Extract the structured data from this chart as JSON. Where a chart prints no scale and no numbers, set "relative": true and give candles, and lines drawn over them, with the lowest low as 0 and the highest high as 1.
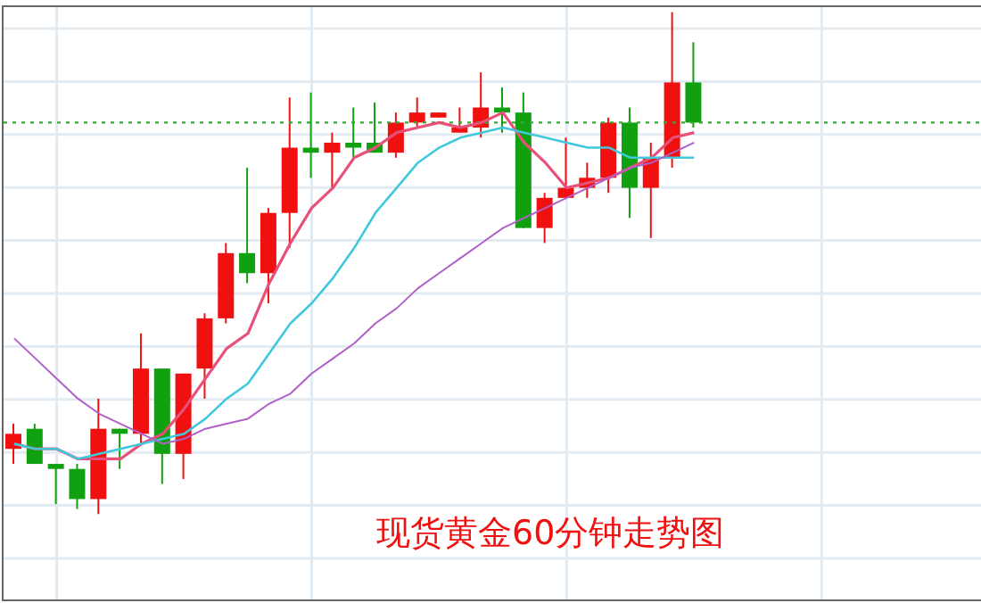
{
  "chart_data": {
    "type": "candlestick",
    "title": "现货黄金60分钟走势图",
    "relative": true,
    "grid": true,
    "categories": [
      null,
      null,
      null,
      null,
      null,
      null,
      null,
      null,
      null,
      null,
      null,
      null,
      null,
      null,
      null,
      null,
      null,
      null,
      null,
      null,
      null,
      null,
      null,
      null,
      null,
      null,
      null,
      null,
      null,
      null,
      null,
      null,
      null,
      null,
      null,
      null,
      null,
      null,
      null,
      null,
      null,
      null,
      null,
      null,
      null,
      null
    ],
    "ohlc": [
      [
        0.13,
        0.18,
        0.1,
        0.16
      ],
      [
        0.17,
        0.18,
        0.1,
        0.1
      ],
      [
        0.1,
        0.1,
        0.02,
        0.09
      ],
      [
        0.09,
        0.1,
        0.01,
        0.03
      ],
      [
        0.03,
        0.23,
        0,
        0.17
      ],
      [
        0.17,
        0.17,
        0.09,
        0.16
      ],
      [
        0.16,
        0.36,
        0.14,
        0.29
      ],
      [
        0.29,
        0.29,
        0.06,
        0.12
      ],
      [
        0.12,
        0.28,
        0.07,
        0.28
      ],
      [
        0.29,
        0.4,
        0.23,
        0.39
      ],
      [
        0.39,
        0.54,
        0.38,
        0.52
      ],
      [
        0.52,
        0.69,
        0.46,
        0.48
      ],
      [
        0.48,
        0.61,
        0.42,
        0.6
      ],
      [
        0.6,
        0.83,
        0.53,
        0.73
      ],
      [
        0.73,
        0.84,
        0.67,
        0.72
      ],
      [
        0.72,
        0.76,
        0.65,
        0.74
      ],
      [
        0.74,
        0.81,
        0.71,
        0.73
      ],
      [
        0.74,
        0.82,
        0.72,
        0.72
      ],
      [
        0.72,
        0.8,
        0.71,
        0.78
      ],
      [
        0.78,
        0.83,
        0.77,
        0.8
      ],
      [
        0.79,
        0.8,
        0.79,
        0.8
      ],
      [
        0.76,
        0.81,
        0.76,
        0.77
      ],
      [
        0.77,
        0.88,
        0.75,
        0.81
      ],
      [
        0.81,
        0.85,
        0.76,
        0.8
      ],
      [
        0.8,
        0.84,
        0.57,
        0.57
      ],
      [
        0.57,
        0.64,
        0.54,
        0.63
      ],
      [
        0.63,
        0.75,
        0.63,
        0.65
      ],
      [
        0.65,
        0.7,
        0.63,
        0.67
      ],
      [
        0.67,
        0.79,
        0.64,
        0.78
      ],
      [
        0.78,
        0.81,
        0.59,
        0.65
      ],
      [
        0.65,
        0.74,
        0.55,
        0.71
      ],
      [
        0.71,
        1.0,
        0.69,
        0.86
      ],
      [
        0.86,
        0.94,
        0.77,
        0.78
      ],
      null,
      null,
      null,
      null,
      null,
      null,
      null,
      null,
      null,
      null,
      null,
      null,
      null
    ],
    "colors": [
      "#f01010",
      "#10a010",
      "#10a010",
      "#10a010",
      "#f01010",
      "#10a010",
      "#f01010",
      "#10a010",
      "#f01010",
      "#f01010",
      "#f01010",
      "#10a010",
      "#f01010",
      "#f01010",
      "#10a010",
      "#f01010",
      "#10a010",
      "#10a010",
      "#f01010",
      "#f01010",
      "#f01010",
      "#f01010",
      "#f01010",
      "#10a010",
      "#10a010",
      "#f01010",
      "#f01010",
      "#f01010",
      "#f01010",
      "#10a010",
      "#f01010",
      "#f01010",
      "#10a010",
      null,
      null,
      null,
      null,
      null,
      null,
      null,
      null,
      null,
      null,
      null,
      null,
      null
    ],
    "series": [
      {
        "type": "line",
        "color": "#e8507a",
        "values": [
          0.14,
          0.13,
          0.13,
          0.11,
          0.11,
          0.11,
          0.14,
          0.16,
          0.21,
          0.27,
          0.33,
          0.36,
          0.46,
          0.54,
          0.61,
          0.65,
          0.71,
          0.73,
          0.76,
          0.77,
          0.78,
          0.77,
          0.78,
          0.8,
          0.74,
          0.7,
          0.65,
          0.66,
          0.67,
          0.69,
          0.71,
          0.75,
          0.76,
          null,
          null,
          null,
          null,
          null,
          null,
          null,
          null,
          null,
          null,
          null,
          null,
          null
        ]
      },
      {
        "type": "line",
        "color": "#40c8dc",
        "values": [
          0.14,
          0.13,
          0.13,
          0.11,
          0.12,
          0.13,
          0.14,
          0.15,
          0.16,
          0.19,
          0.23,
          0.26,
          0.32,
          0.38,
          0.42,
          0.47,
          0.53,
          0.6,
          0.65,
          0.7,
          0.73,
          0.75,
          0.76,
          0.77,
          0.76,
          0.75,
          0.74,
          0.73,
          0.73,
          0.71,
          0.71,
          0.71,
          0.71,
          null,
          null,
          null,
          null,
          null,
          null,
          null,
          null,
          null,
          null,
          null,
          null,
          null
        ]
      },
      {
        "type": "line",
        "color": "#b060c8",
        "values": [
          0.35,
          0.31,
          0.27,
          0.23,
          0.2,
          0.18,
          0.16,
          0.14,
          0.15,
          0.17,
          0.18,
          0.19,
          0.22,
          0.24,
          0.28,
          0.31,
          0.34,
          0.38,
          0.41,
          0.45,
          0.48,
          0.51,
          0.54,
          0.57,
          0.59,
          0.61,
          0.63,
          0.65,
          0.67,
          0.69,
          0.7,
          0.72,
          0.74,
          null,
          null,
          null,
          null,
          null,
          null,
          null,
          null,
          null,
          null,
          null,
          null,
          null
        ]
      }
    ],
    "ref_lines": [
      {
        "axis": "y",
        "value": 0.78,
        "color": "#33aa33",
        "line_style": "dotted"
      }
    ]
  }
}
